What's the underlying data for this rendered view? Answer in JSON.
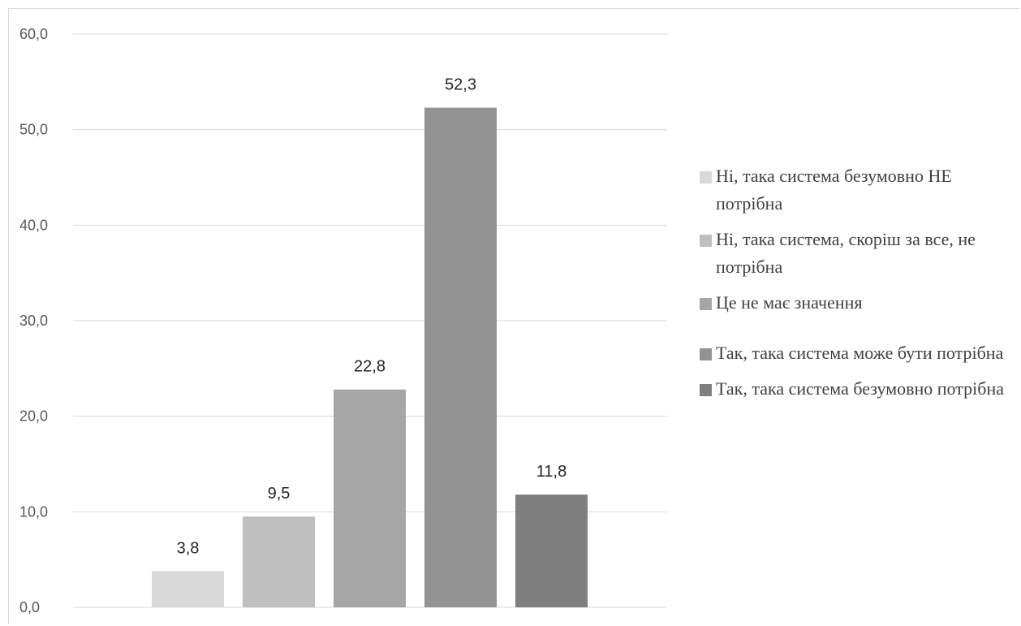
{
  "chart_data": {
    "type": "bar",
    "title": "",
    "xlabel": "",
    "ylabel": "",
    "ylim": [
      0,
      60
    ],
    "yticks": [
      "0,0",
      "10,0",
      "20,0",
      "30,0",
      "40,0",
      "50,0",
      "60,0"
    ],
    "grid": true,
    "legend_position": "right",
    "categories": [
      "Ні, така система безумовно НЕ потрібна",
      "Ні, така система, скоріш за все, не потрібна",
      "Це не має значення",
      "Так, така система може бути потрібна",
      "Так, така система безумовно потрібна"
    ],
    "values": [
      3.8,
      9.5,
      22.8,
      52.3,
      11.8
    ],
    "value_labels": [
      "3,8",
      "9,5",
      "22,8",
      "52,3",
      "11,8"
    ],
    "colors": [
      "#d9d9d9",
      "#bfbfbf",
      "#a6a6a6",
      "#939393",
      "#7f7f7f"
    ]
  },
  "legend": {
    "items": [
      {
        "label": "Ні, така система безумовно НЕ потрібна",
        "color": "#d9d9d9"
      },
      {
        "label": "Ні, така система, скоріш за все, не потрібна",
        "color": "#bfbfbf"
      },
      {
        "label": "Це не має значення",
        "color": "#a6a6a6"
      },
      {
        "label": "Так, така система може бути потрібна",
        "color": "#939393"
      },
      {
        "label": "Так, така система безумовно потрібна",
        "color": "#7f7f7f"
      }
    ]
  }
}
